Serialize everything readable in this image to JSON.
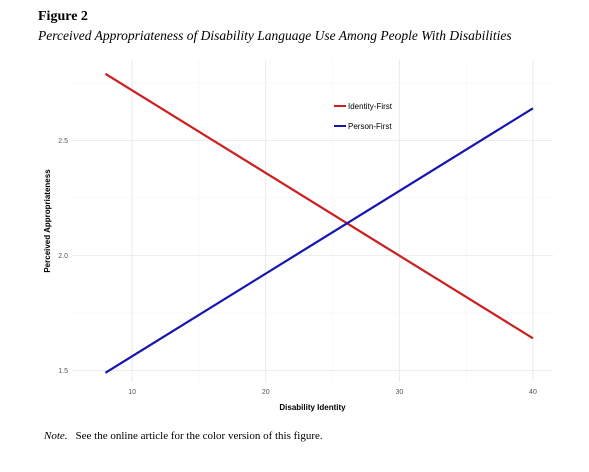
{
  "figure_label": "Figure 2",
  "figure_title": "Perceived Appropriateness of Disability Language Use Among People With Disabilities",
  "note_label": "Note.",
  "note_text": "See the online article for the color version of this figure.",
  "chart_data": {
    "type": "line",
    "xlabel": "Disability Identity",
    "ylabel": "Perceived Appropriateness",
    "xlim": [
      5.5,
      41.5
    ],
    "ylim": [
      1.45,
      2.85
    ],
    "x_ticks": [
      10,
      20,
      30,
      40
    ],
    "y_ticks": [
      1.5,
      2.0,
      2.5
    ],
    "y_tick_labels": [
      "1.5",
      "2.0",
      "2.5"
    ],
    "grid": true,
    "legend_position": "top-right",
    "series": [
      {
        "name": "Identity-First",
        "color": "#cc1f1f",
        "x": [
          8,
          40
        ],
        "y": [
          2.79,
          1.64
        ]
      },
      {
        "name": "Person-First",
        "color": "#1515b0",
        "x": [
          8,
          40
        ],
        "y": [
          1.49,
          2.64
        ]
      }
    ]
  }
}
